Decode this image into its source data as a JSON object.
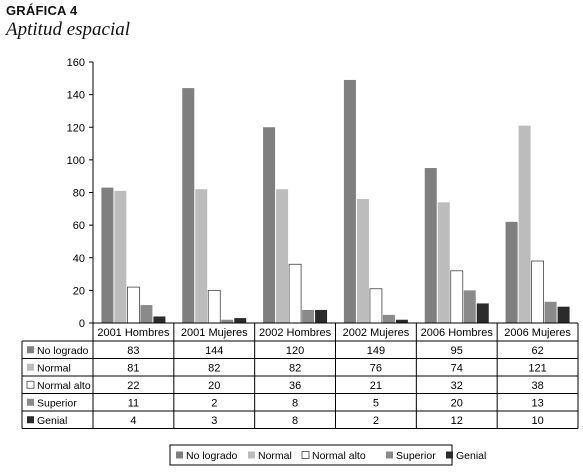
{
  "figure": {
    "label": "GRÁFICA 4",
    "title": "Aptitud espacial"
  },
  "chart_data": {
    "type": "bar",
    "categories": [
      "2001 Hombres",
      "2001 Mujeres",
      "2002 Hombres",
      "2002 Mujeres",
      "2006 Hombres",
      "2006 Mujeres"
    ],
    "series": [
      {
        "name": "No logrado",
        "color": "#7f7f7f",
        "values": [
          83,
          144,
          120,
          149,
          95,
          62
        ]
      },
      {
        "name": "Normal",
        "color": "#bcbcbc",
        "values": [
          81,
          82,
          82,
          76,
          74,
          121
        ]
      },
      {
        "name": "Normal alto",
        "color": "#ffffff",
        "values": [
          22,
          20,
          36,
          21,
          32,
          38
        ]
      },
      {
        "name": "Superior",
        "color": "#8a8a8a",
        "values": [
          11,
          2,
          8,
          5,
          20,
          13
        ]
      },
      {
        "name": "Genial",
        "color": "#2b2b2b",
        "values": [
          4,
          3,
          8,
          2,
          12,
          10
        ]
      }
    ],
    "ylim": [
      0,
      160
    ],
    "yticks": [
      0,
      20,
      40,
      60,
      80,
      100,
      120,
      140,
      160
    ],
    "grid": false,
    "legend": "bottom",
    "data_table": true
  }
}
